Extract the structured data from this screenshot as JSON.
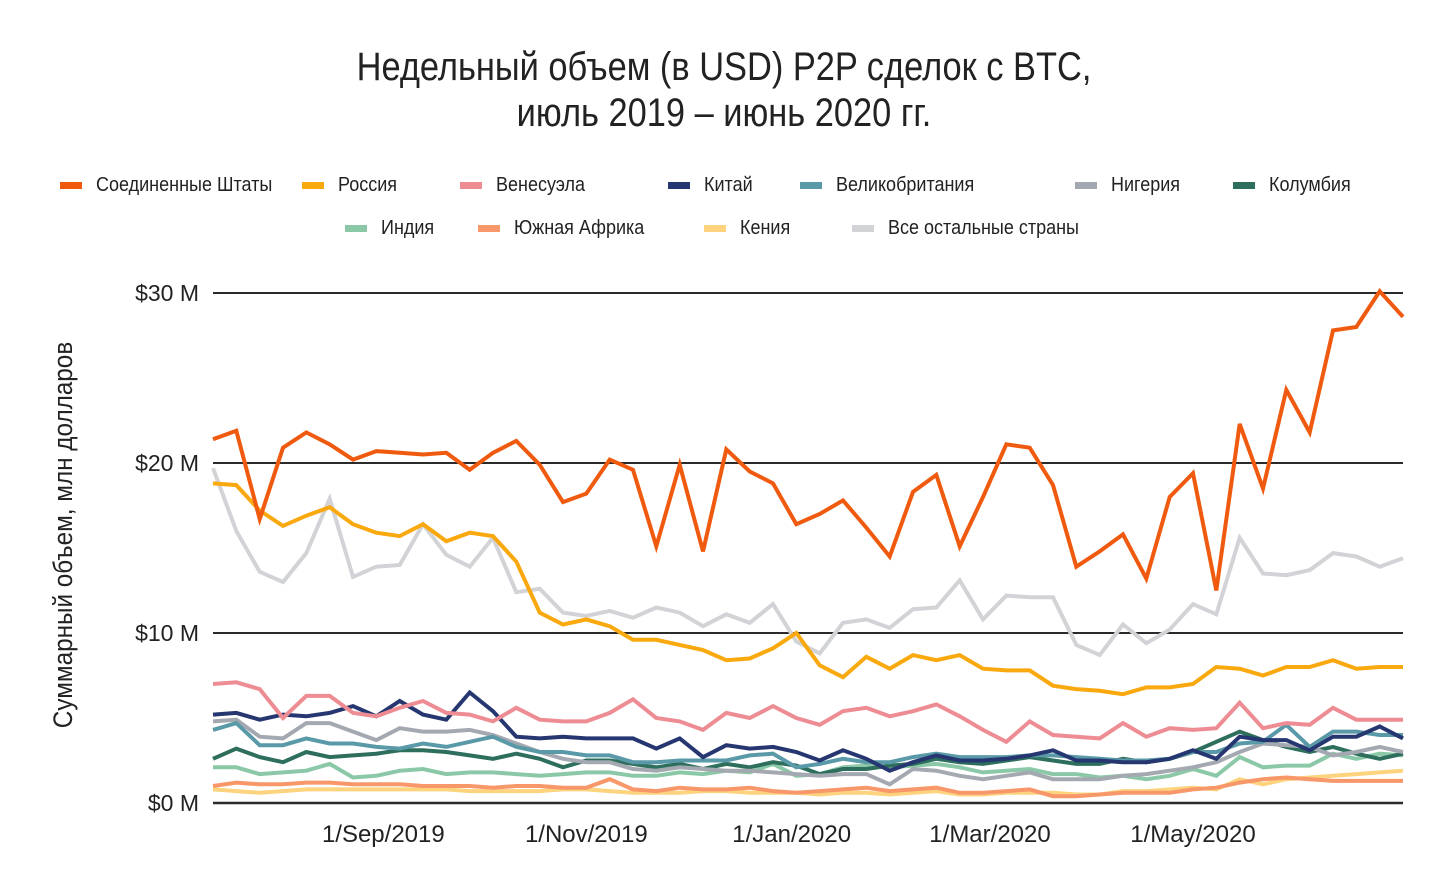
{
  "chart_data": {
    "type": "line",
    "title": "Недельный объем (в USD) P2P сделок с BTC,",
    "subtitle": "июль 2019 – июнь 2020 гг.",
    "xlabel": "",
    "ylabel": "Суммарный объем, млн долларов",
    "ylim": [
      0,
      30
    ],
    "yticks": [
      0,
      10,
      20,
      30
    ],
    "ytick_labels": [
      "$0 M",
      "$10 M",
      "$20 M",
      "$30 M"
    ],
    "xtick_labels": [
      "1/Sep/2019",
      "1/Nov/2019",
      "1/Jan/2020",
      "1/Mar/2020",
      "1/May/2020"
    ],
    "xtick_positions_week_index": [
      7.3,
      16,
      24.8,
      33.3,
      42
    ],
    "grid": "horizontal",
    "legend_position": "top",
    "n_points": 52,
    "x_start": "2019-07 (weekly)",
    "series": [
      {
        "name": "Соединенные Штаты",
        "color": "#f05a0e",
        "values": [
          21.4,
          21.9,
          16.7,
          20.9,
          21.8,
          21.1,
          20.2,
          20.7,
          20.6,
          20.5,
          20.6,
          19.6,
          20.6,
          21.3,
          19.9,
          17.7,
          18.2,
          20.2,
          19.6,
          15.1,
          19.9,
          14.8,
          20.8,
          19.5,
          18.8,
          16.4,
          17.0,
          17.8,
          16.2,
          14.5,
          18.3,
          19.3,
          15.1,
          18.0,
          21.1,
          20.9,
          18.7,
          13.9,
          14.8,
          15.8,
          13.2,
          18.0,
          19.4,
          12.5,
          22.3,
          18.5,
          24.3,
          21.8,
          27.8,
          28.0,
          30.1,
          28.6
        ]
      },
      {
        "name": "Россия",
        "color": "#f9a80e",
        "values": [
          18.8,
          18.7,
          17.2,
          16.3,
          16.9,
          17.4,
          16.4,
          15.9,
          15.7,
          16.4,
          15.4,
          15.9,
          15.7,
          14.2,
          11.2,
          10.5,
          10.8,
          10.4,
          9.6,
          9.6,
          9.3,
          9.0,
          8.4,
          8.5,
          9.1,
          10.0,
          8.1,
          7.4,
          8.6,
          7.9,
          8.7,
          8.4,
          8.7,
          7.9,
          7.8,
          7.8,
          6.9,
          6.7,
          6.6,
          6.4,
          6.8,
          6.8,
          7.0,
          8.0,
          7.9,
          7.5,
          8.0,
          8.0,
          8.4,
          7.9,
          8.0,
          8.0
        ]
      },
      {
        "name": "Венесуэла",
        "color": "#ee8c93",
        "values": [
          7.0,
          7.1,
          6.7,
          5.0,
          6.3,
          6.3,
          5.3,
          5.1,
          5.6,
          6.0,
          5.3,
          5.2,
          4.8,
          5.6,
          4.9,
          4.8,
          4.8,
          5.3,
          6.1,
          5.0,
          4.8,
          4.3,
          5.3,
          5.0,
          5.7,
          5.0,
          4.6,
          5.4,
          5.6,
          5.1,
          5.4,
          5.8,
          5.1,
          4.3,
          3.6,
          4.8,
          4.0,
          3.9,
          3.8,
          4.7,
          3.9,
          4.4,
          4.3,
          4.4,
          5.9,
          4.4,
          4.7,
          4.6,
          5.6,
          4.9,
          4.9,
          4.9
        ]
      },
      {
        "name": "Китай",
        "color": "#253670",
        "values": [
          5.2,
          5.3,
          4.9,
          5.2,
          5.1,
          5.3,
          5.7,
          5.1,
          6.0,
          5.2,
          4.9,
          6.5,
          5.4,
          3.9,
          3.8,
          3.9,
          3.8,
          3.8,
          3.8,
          3.2,
          3.8,
          2.7,
          3.4,
          3.2,
          3.3,
          3.0,
          2.5,
          3.1,
          2.6,
          1.9,
          2.4,
          2.8,
          2.5,
          2.5,
          2.6,
          2.8,
          3.1,
          2.5,
          2.5,
          2.4,
          2.4,
          2.6,
          3.1,
          2.6,
          3.9,
          3.7,
          3.7,
          3.1,
          3.9,
          3.9,
          4.5,
          3.8
        ]
      },
      {
        "name": "Великобритания",
        "color": "#5a9aa8",
        "values": [
          4.3,
          4.7,
          3.4,
          3.4,
          3.8,
          3.5,
          3.5,
          3.3,
          3.2,
          3.5,
          3.3,
          3.6,
          3.9,
          3.3,
          3.0,
          3.0,
          2.8,
          2.8,
          2.4,
          2.4,
          2.5,
          2.5,
          2.5,
          2.8,
          2.9,
          2.1,
          2.3,
          2.6,
          2.4,
          2.4,
          2.7,
          2.9,
          2.7,
          2.7,
          2.7,
          2.8,
          2.8,
          2.7,
          2.6,
          2.5,
          2.5,
          2.6,
          3.0,
          3.0,
          3.5,
          3.6,
          4.6,
          3.3,
          4.2,
          4.2,
          4.0,
          4.0
        ]
      },
      {
        "name": "Нигерия",
        "color": "#a4a9b1",
        "values": [
          4.8,
          4.9,
          3.9,
          3.8,
          4.7,
          4.7,
          4.2,
          3.7,
          4.4,
          4.2,
          4.2,
          4.3,
          4.0,
          3.5,
          3.0,
          2.6,
          2.4,
          2.4,
          2.0,
          1.9,
          2.1,
          2.0,
          1.9,
          1.9,
          1.8,
          1.7,
          1.6,
          1.7,
          1.7,
          1.1,
          2.0,
          1.9,
          1.6,
          1.4,
          1.6,
          1.8,
          1.4,
          1.4,
          1.4,
          1.6,
          1.7,
          1.9,
          2.1,
          2.4,
          3.0,
          3.5,
          3.4,
          3.3,
          2.8,
          3.0,
          3.3,
          3.0
        ]
      },
      {
        "name": "Колумбия",
        "color": "#2e6e5c",
        "values": [
          2.6,
          3.2,
          2.7,
          2.4,
          3.0,
          2.7,
          2.8,
          2.9,
          3.1,
          3.1,
          3.0,
          2.8,
          2.6,
          2.9,
          2.6,
          2.1,
          2.5,
          2.5,
          2.3,
          2.1,
          2.3,
          2.0,
          2.3,
          2.1,
          2.4,
          2.2,
          1.7,
          2.0,
          2.0,
          2.2,
          2.3,
          2.6,
          2.4,
          2.3,
          2.5,
          2.7,
          2.5,
          2.3,
          2.3,
          2.6,
          2.4,
          2.6,
          3.0,
          3.6,
          4.2,
          3.7,
          3.3,
          3.0,
          3.3,
          2.9,
          2.6,
          2.9
        ]
      },
      {
        "name": "Индия",
        "color": "#8bc8a7",
        "values": [
          2.1,
          2.1,
          1.7,
          1.8,
          1.9,
          2.3,
          1.5,
          1.6,
          1.9,
          2.0,
          1.7,
          1.8,
          1.8,
          1.7,
          1.6,
          1.7,
          1.8,
          1.8,
          1.6,
          1.6,
          1.8,
          1.7,
          1.9,
          1.8,
          2.3,
          1.6,
          1.7,
          2.1,
          2.2,
          2.1,
          2.2,
          2.3,
          2.1,
          1.8,
          1.9,
          2.0,
          1.7,
          1.7,
          1.5,
          1.6,
          1.4,
          1.6,
          2.0,
          1.6,
          2.7,
          2.1,
          2.2,
          2.2,
          2.9,
          2.6,
          2.9,
          2.8
        ]
      },
      {
        "name": "Южная Африка",
        "color": "#f7976a",
        "values": [
          1.0,
          1.2,
          1.1,
          1.1,
          1.2,
          1.2,
          1.1,
          1.1,
          1.1,
          1.0,
          1.0,
          1.0,
          0.9,
          1.0,
          1.0,
          0.9,
          0.9,
          1.4,
          0.8,
          0.7,
          0.9,
          0.8,
          0.8,
          0.9,
          0.7,
          0.6,
          0.7,
          0.8,
          0.9,
          0.7,
          0.8,
          0.9,
          0.6,
          0.6,
          0.7,
          0.8,
          0.4,
          0.4,
          0.5,
          0.6,
          0.6,
          0.6,
          0.8,
          0.9,
          1.2,
          1.4,
          1.5,
          1.4,
          1.3,
          1.3,
          1.3,
          1.3
        ]
      },
      {
        "name": "Кения",
        "color": "#fdd37e",
        "values": [
          0.8,
          0.7,
          0.6,
          0.7,
          0.8,
          0.8,
          0.8,
          0.8,
          0.8,
          0.8,
          0.8,
          0.7,
          0.7,
          0.7,
          0.7,
          0.8,
          0.8,
          0.7,
          0.6,
          0.6,
          0.6,
          0.7,
          0.7,
          0.6,
          0.6,
          0.6,
          0.5,
          0.6,
          0.6,
          0.5,
          0.6,
          0.7,
          0.5,
          0.5,
          0.6,
          0.6,
          0.6,
          0.5,
          0.5,
          0.7,
          0.7,
          0.8,
          0.9,
          0.8,
          1.4,
          1.1,
          1.4,
          1.5,
          1.6,
          1.7,
          1.8,
          1.9
        ]
      },
      {
        "name": "Все остальные страны",
        "color": "#d2d3d6",
        "values": [
          19.7,
          16.0,
          13.6,
          13.0,
          14.7,
          17.9,
          13.3,
          13.9,
          14.0,
          16.4,
          14.6,
          13.9,
          15.6,
          12.4,
          12.6,
          11.2,
          11.0,
          11.3,
          10.9,
          11.5,
          11.2,
          10.4,
          11.1,
          10.6,
          11.7,
          9.5,
          8.8,
          10.6,
          10.8,
          10.3,
          11.4,
          11.5,
          13.1,
          10.8,
          12.2,
          12.1,
          12.1,
          9.3,
          8.7,
          10.5,
          9.4,
          10.2,
          11.7,
          11.1,
          15.6,
          13.5,
          13.4,
          13.7,
          14.7,
          14.5,
          13.9,
          14.4
        ]
      }
    ]
  },
  "legend": {
    "row1": [
      "Соединенные Штаты",
      "Россия",
      "Венесуэла",
      "Китай",
      "Великобритания",
      "Нигерия",
      "Колумбия"
    ],
    "row2": [
      "Индия",
      "Южная Африка",
      "Кения",
      "Все остальные страны"
    ]
  }
}
